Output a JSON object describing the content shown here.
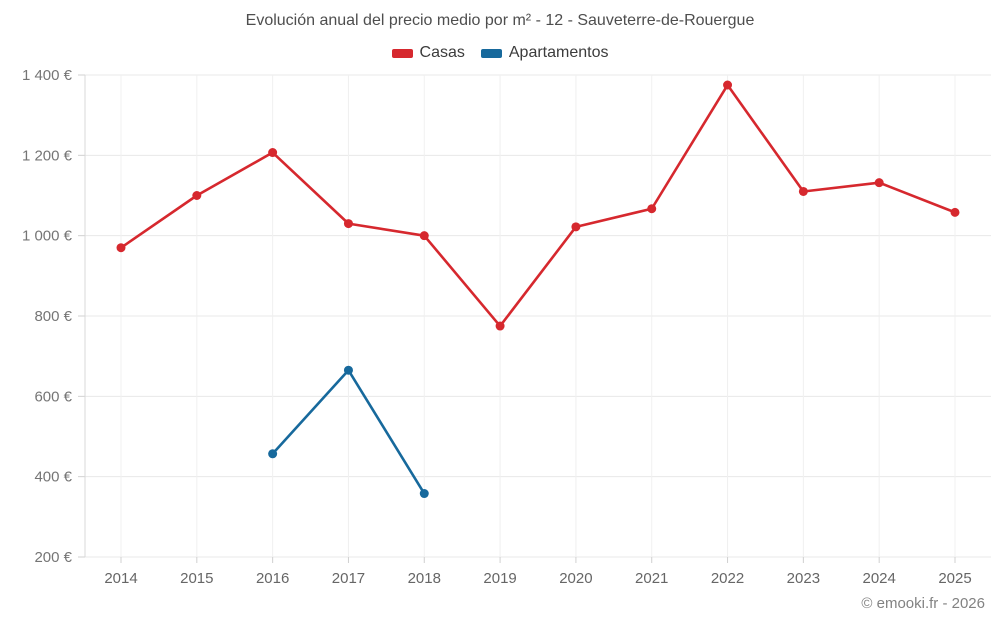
{
  "chart_data": {
    "type": "line",
    "title": "Evolución anual del precio medio por m² - 12 - Sauveterre-de-Rouergue",
    "categories": [
      "2014",
      "2015",
      "2016",
      "2017",
      "2018",
      "2019",
      "2020",
      "2021",
      "2022",
      "2023",
      "2024",
      "2025"
    ],
    "series": [
      {
        "name": "Casas",
        "color": "#d6282e",
        "values": [
          970,
          1100,
          1207,
          1030,
          1000,
          775,
          1022,
          1067,
          1375,
          1110,
          1132,
          1058
        ]
      },
      {
        "name": "Apartamentos",
        "color": "#17699c",
        "values": [
          null,
          null,
          457,
          665,
          358,
          null,
          null,
          null,
          null,
          null,
          null,
          null
        ]
      }
    ],
    "ylim": [
      200,
      1400
    ],
    "ytick_step": 200,
    "ytick_labels": [
      "200 €",
      "400 €",
      "600 €",
      "800 €",
      "1 000 €",
      "1 200 €",
      "1 400 €"
    ],
    "grid": true,
    "legend_position": "top"
  },
  "footer": {
    "credit": "© emooki.fr - 2026"
  }
}
